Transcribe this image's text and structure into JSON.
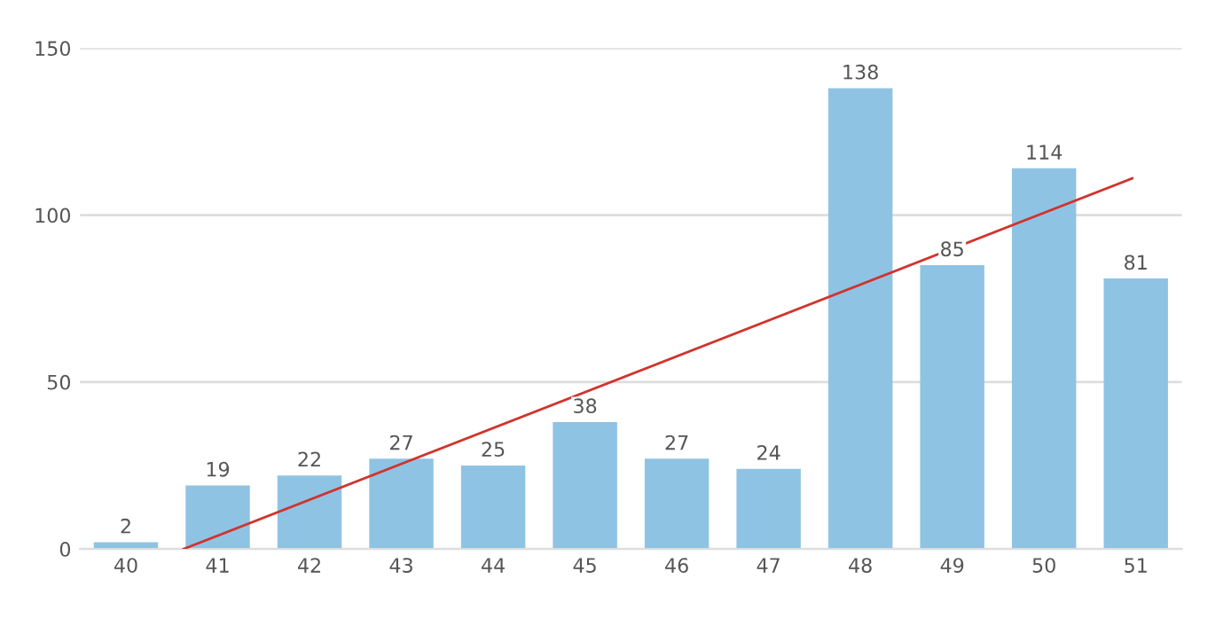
{
  "chart_data": {
    "type": "bar",
    "x": [
      40,
      41,
      42,
      43,
      44,
      45,
      46,
      47,
      48,
      49,
      50,
      51
    ],
    "series": [
      {
        "color": "#8fc3e4",
        "values": [
          2,
          19,
          22,
          27,
          25,
          38,
          27,
          24,
          138,
          85,
          114,
          81
        ],
        "value_labels": [
          "2",
          "19",
          "22",
          "27",
          "25",
          "38",
          "27",
          "24",
          "138",
          "85",
          "114",
          "81"
        ]
      },
      {
        "type": "line",
        "color": "#d0342c",
        "x": [
          40.63,
          50.96
        ],
        "values": [
          0,
          111
        ]
      }
    ],
    "xlim": [
      39.5,
      51.5
    ],
    "xticks": [
      40,
      41,
      42,
      43,
      44,
      45,
      46,
      47,
      48,
      49,
      50,
      51
    ],
    "ylim": [
      0,
      150
    ],
    "yticks": [
      0,
      50,
      100,
      150
    ],
    "grid": "y"
  }
}
